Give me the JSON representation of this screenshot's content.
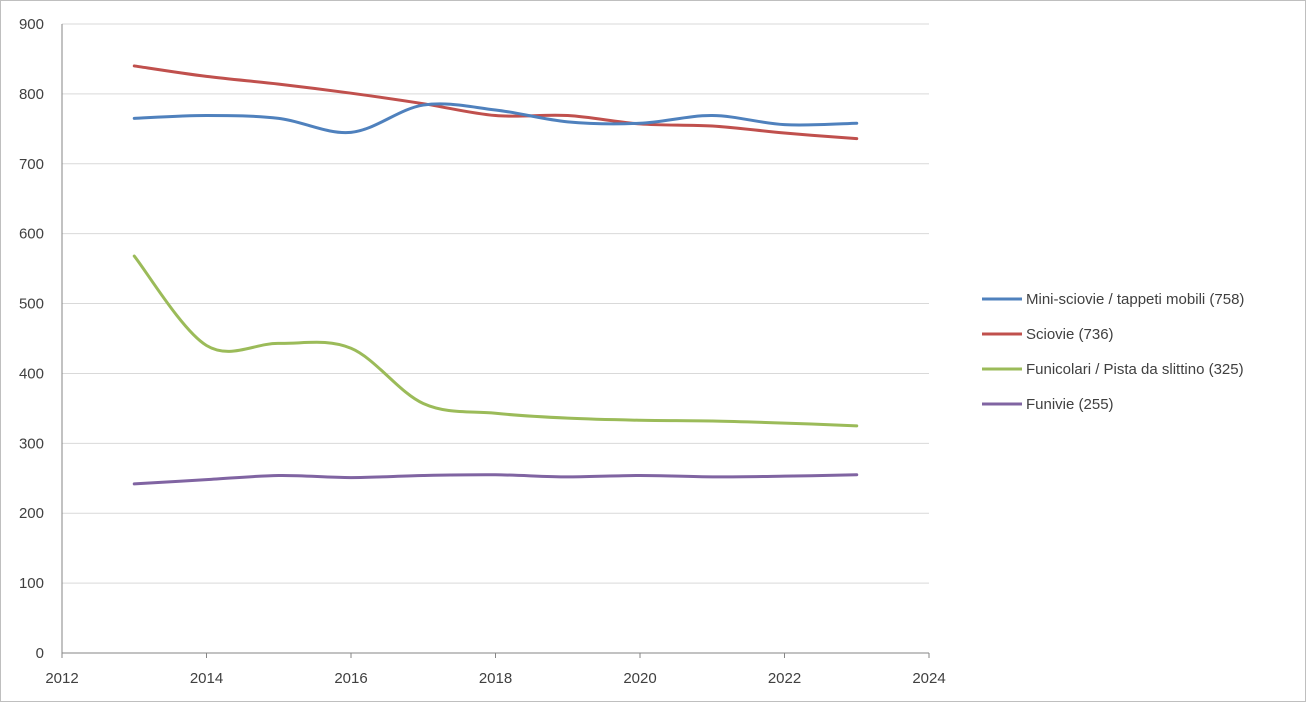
{
  "chart_data": {
    "type": "line",
    "title": "",
    "xlabel": "",
    "ylabel": "",
    "xlim": [
      2012,
      2024
    ],
    "ylim": [
      0,
      900
    ],
    "x_ticks": [
      2012,
      2014,
      2016,
      2018,
      2020,
      2022,
      2024
    ],
    "y_ticks": [
      0,
      100,
      200,
      300,
      400,
      500,
      600,
      700,
      800,
      900
    ],
    "grid": "horizontal",
    "legend_position": "right",
    "smooth": true,
    "x": [
      2013,
      2014,
      2015,
      2016,
      2017,
      2018,
      2019,
      2020,
      2021,
      2022,
      2023
    ],
    "series": [
      {
        "name": "Mini-sciovie / tappeti mobili (758)",
        "color": "#4f81bd",
        "values": [
          765,
          769,
          765,
          745,
          784,
          777,
          760,
          758,
          769,
          756,
          758
        ]
      },
      {
        "name": "Sciovie (736)",
        "color": "#c0504d",
        "values": [
          840,
          825,
          814,
          801,
          786,
          769,
          769,
          757,
          754,
          744,
          736
        ]
      },
      {
        "name": "Funicolari  / Pista da slittino (325)",
        "color": "#9bbb59",
        "values": [
          568,
          440,
          443,
          436,
          357,
          343,
          336,
          333,
          332,
          329,
          325
        ]
      },
      {
        "name": "Funivie (255)",
        "color": "#8064a2",
        "values": [
          242,
          248,
          254,
          251,
          254,
          255,
          252,
          254,
          252,
          253,
          255
        ]
      }
    ]
  },
  "colors": {
    "grid": "#d9d9d9",
    "axis": "#868686",
    "text": "#404040"
  }
}
